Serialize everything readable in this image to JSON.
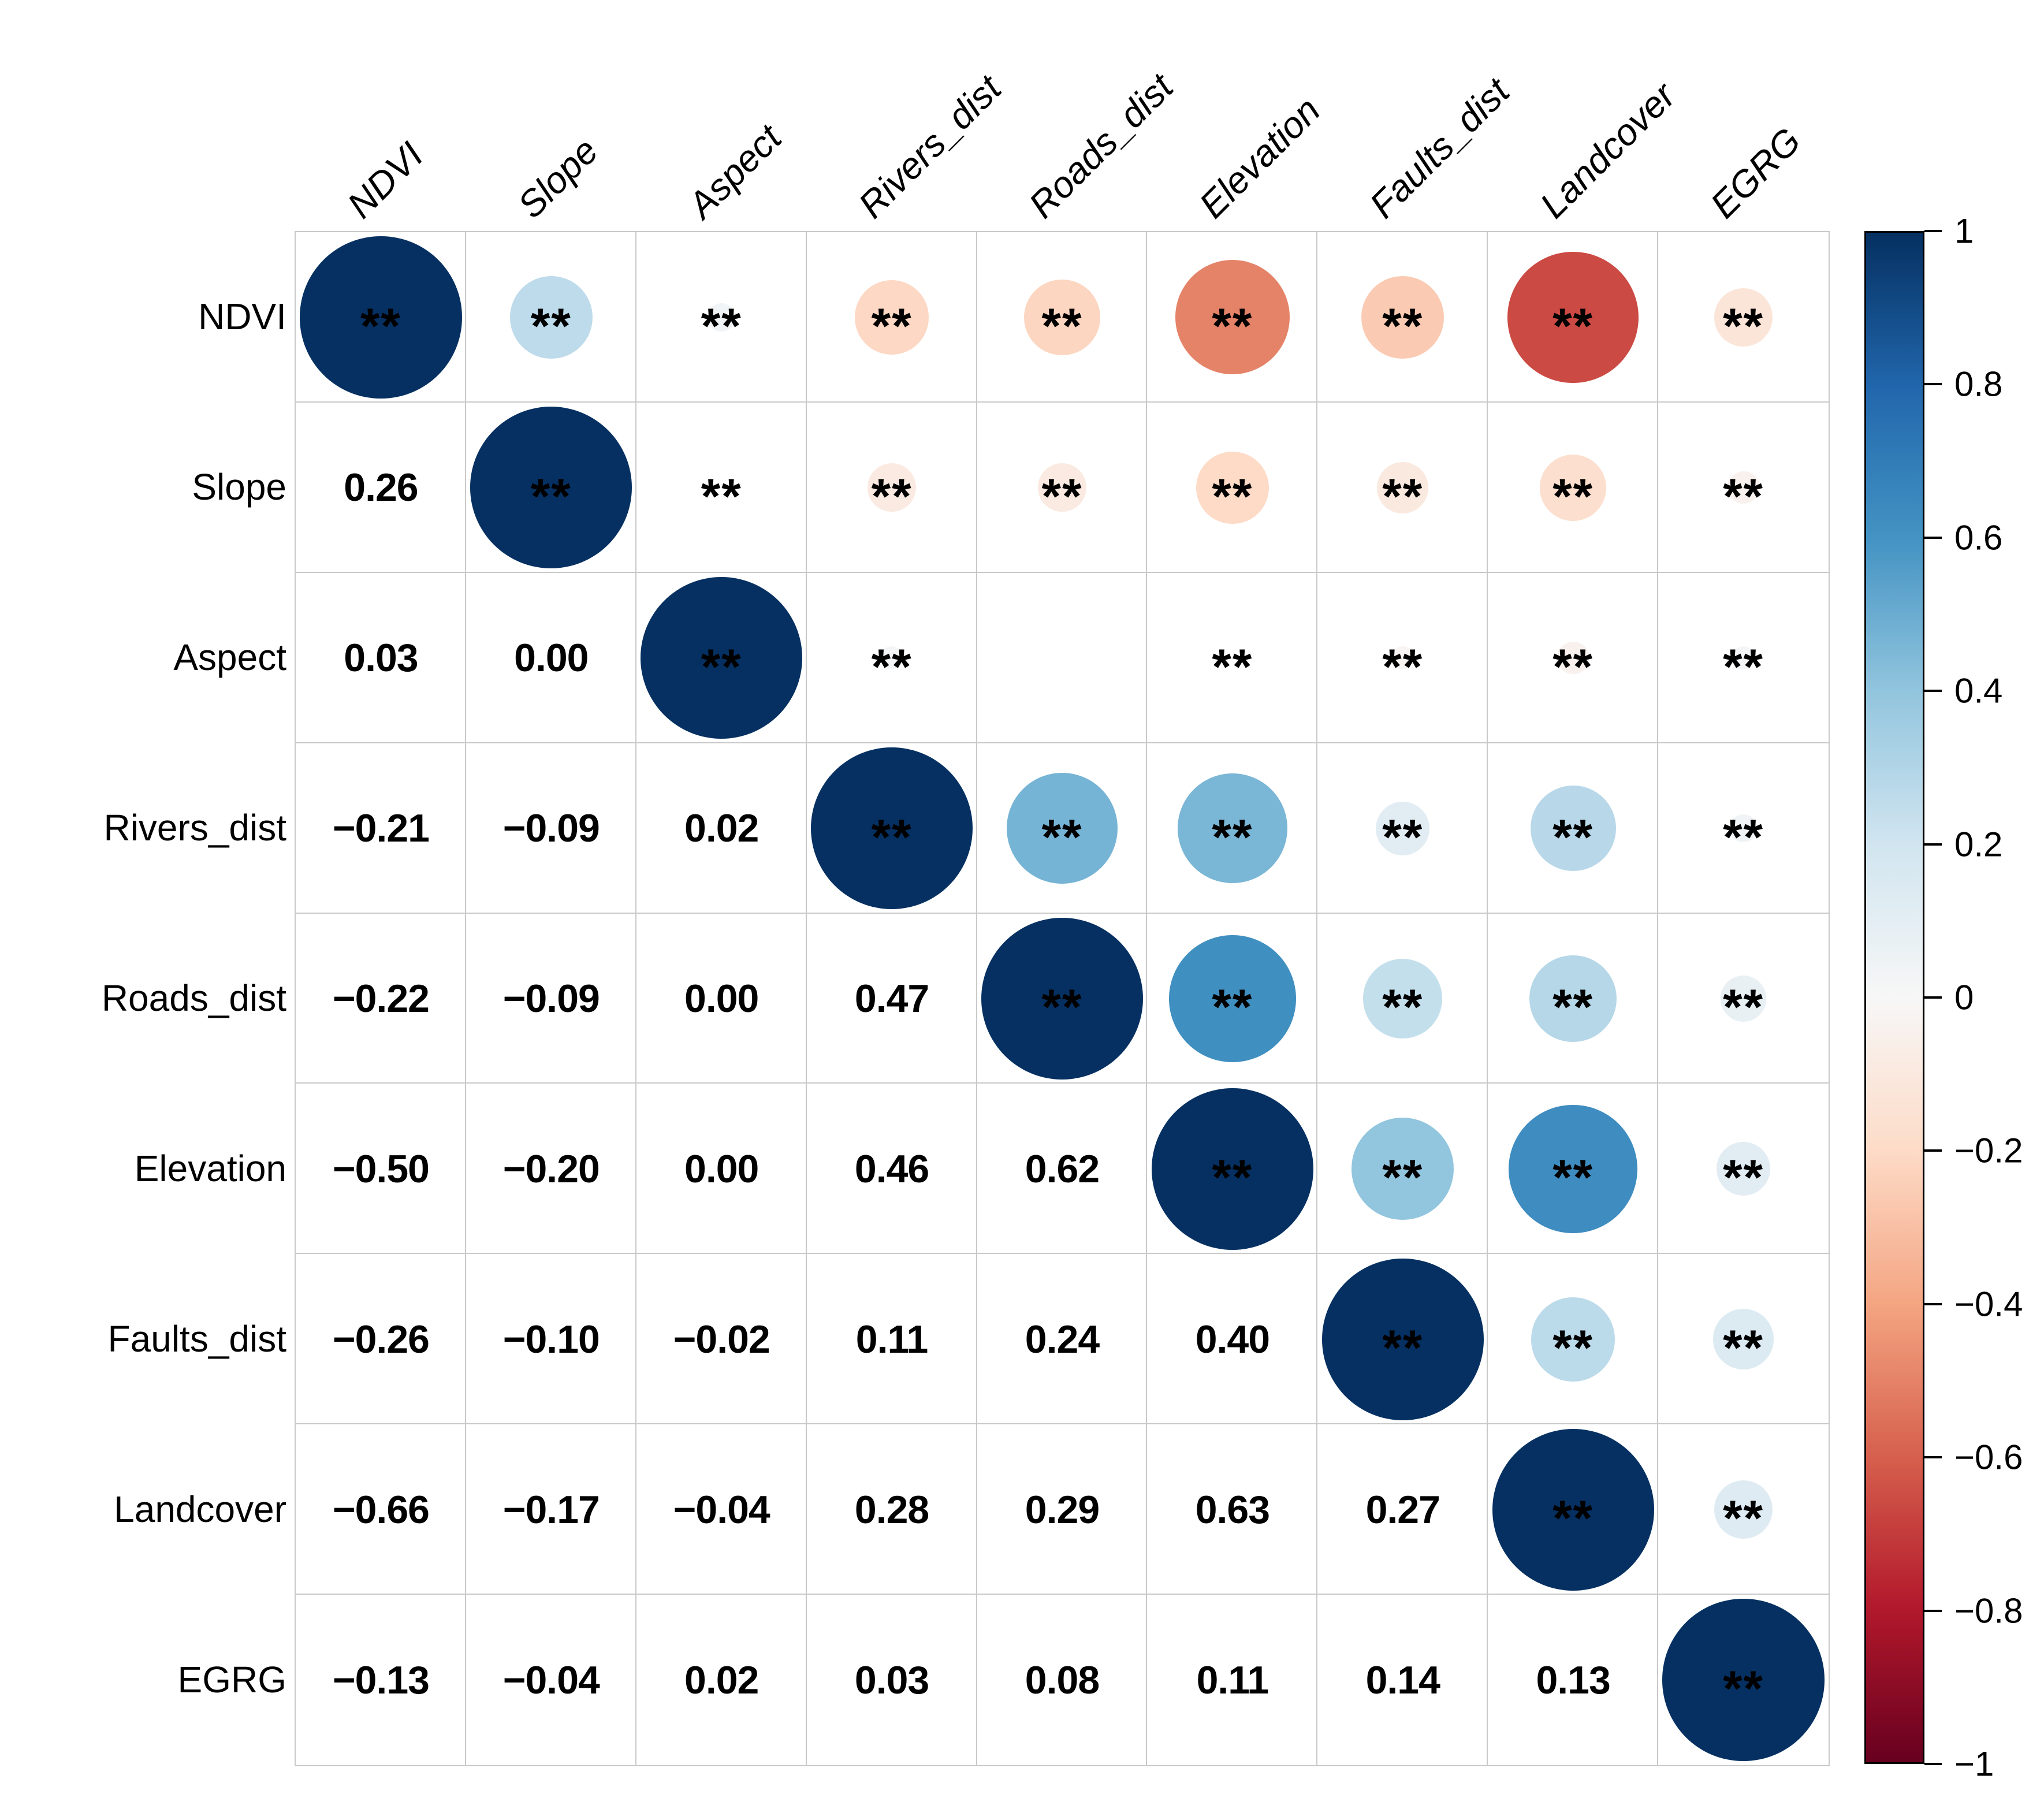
{
  "chart_data": {
    "type": "heatmap",
    "subtype": "correlation-matrix",
    "title": "",
    "variables": [
      "NDVI",
      "Slope",
      "Aspect",
      "Rivers_dist",
      "Roads_dist",
      "Elevation",
      "Faults_dist",
      "Landcover",
      "EGRG"
    ],
    "matrix": [
      [
        1.0,
        0.26,
        0.03,
        -0.21,
        -0.22,
        -0.5,
        -0.26,
        -0.66,
        -0.13
      ],
      [
        0.26,
        1.0,
        0.0,
        -0.09,
        -0.09,
        -0.2,
        -0.1,
        -0.17,
        -0.04
      ],
      [
        0.03,
        0.0,
        1.0,
        0.02,
        0.0,
        0.0,
        -0.02,
        -0.04,
        0.02
      ],
      [
        -0.21,
        -0.09,
        0.02,
        1.0,
        0.47,
        0.46,
        0.11,
        0.28,
        0.03
      ],
      [
        -0.22,
        -0.09,
        0.0,
        0.47,
        1.0,
        0.62,
        0.24,
        0.29,
        0.08
      ],
      [
        -0.5,
        -0.2,
        0.0,
        0.46,
        0.62,
        1.0,
        0.4,
        0.63,
        0.11
      ],
      [
        -0.26,
        -0.1,
        -0.02,
        0.11,
        0.24,
        0.4,
        1.0,
        0.27,
        0.14
      ],
      [
        -0.66,
        -0.17,
        -0.04,
        0.28,
        0.29,
        0.63,
        0.27,
        1.0,
        0.13
      ],
      [
        -0.13,
        -0.04,
        0.02,
        0.03,
        0.08,
        0.11,
        0.14,
        0.13,
        1.0
      ]
    ],
    "significance_upper": [
      [
        1,
        1,
        1,
        1,
        1,
        1,
        1,
        1,
        1
      ],
      [
        0,
        1,
        1,
        1,
        1,
        1,
        1,
        1,
        1
      ],
      [
        0,
        0,
        1,
        1,
        0,
        1,
        1,
        1,
        1
      ],
      [
        0,
        0,
        0,
        1,
        1,
        1,
        1,
        1,
        1
      ],
      [
        0,
        0,
        0,
        0,
        1,
        1,
        1,
        1,
        1
      ],
      [
        0,
        0,
        0,
        0,
        0,
        1,
        1,
        1,
        1
      ],
      [
        0,
        0,
        0,
        0,
        0,
        0,
        1,
        1,
        1
      ],
      [
        0,
        0,
        0,
        0,
        0,
        0,
        0,
        1,
        1
      ],
      [
        0,
        0,
        0,
        0,
        0,
        0,
        0,
        0,
        1
      ]
    ],
    "sig_marker": "**",
    "display": {
      "lower_triangle": "coefficient-numbers",
      "upper_triangle": "sized-colored-circles",
      "grid": "on",
      "gridline_color": "#c9c9c9",
      "number_color": "#000000",
      "marker_color": "#000000"
    },
    "colorbar": {
      "position": "right",
      "ticks": [
        "1",
        "0.8",
        "0.6",
        "0.4",
        "0.2",
        "0",
        "−0.2",
        "−0.4",
        "−0.6",
        "−0.8",
        "−1"
      ],
      "range": [
        -1,
        1
      ],
      "stops": [
        {
          "v": 1.0,
          "c": "#053061"
        },
        {
          "v": 0.8,
          "c": "#2166ac"
        },
        {
          "v": 0.6,
          "c": "#4393c3"
        },
        {
          "v": 0.4,
          "c": "#92c5de"
        },
        {
          "v": 0.2,
          "c": "#d1e5f0"
        },
        {
          "v": 0.0,
          "c": "#f7f7f7"
        },
        {
          "v": -0.2,
          "c": "#fddbc7"
        },
        {
          "v": -0.4,
          "c": "#f4a582"
        },
        {
          "v": -0.6,
          "c": "#d6604d"
        },
        {
          "v": -0.8,
          "c": "#b2182b"
        },
        {
          "v": -1.0,
          "c": "#67001f"
        }
      ]
    }
  }
}
